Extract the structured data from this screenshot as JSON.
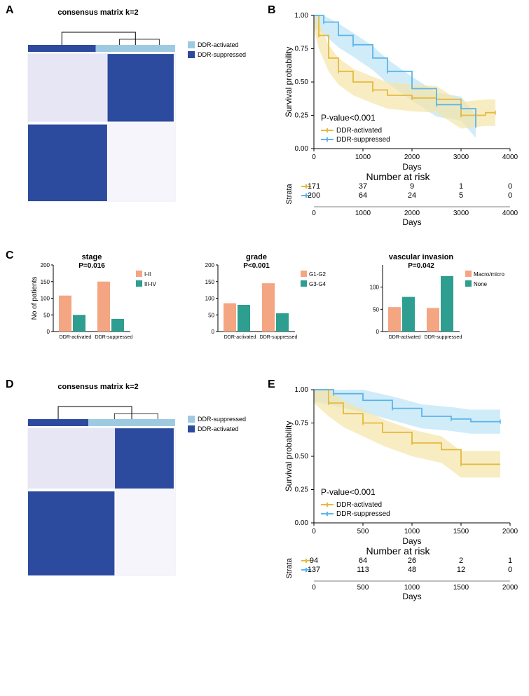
{
  "panelA": {
    "label": "A",
    "title": "consensus matrix k=2",
    "legend": [
      {
        "label": "DDR-activated",
        "color": "#9ecae1"
      },
      {
        "label": "DDR-suppressed",
        "color": "#2c4a9e"
      }
    ],
    "block1_ratio": 0.46,
    "block2_ratio": 0.54,
    "matrix_color": "#2c4a9e",
    "matrix_light": "#9ecae1"
  },
  "panelB": {
    "label": "B",
    "ylabel": "Survival probability",
    "xlabel": "Days",
    "pvalue": "P-value<0.001",
    "xlim": [
      0,
      4000
    ],
    "ylim": [
      0,
      1.0
    ],
    "xticks": [
      0,
      1000,
      2000,
      3000,
      4000
    ],
    "yticks": [
      0.0,
      0.25,
      0.5,
      0.75,
      1.0
    ],
    "legend": [
      {
        "label": "DDR-activated",
        "color": "#e5b93f"
      },
      {
        "label": "DDR-suppressed",
        "color": "#5bb5e8"
      }
    ],
    "series_activated": {
      "color": "#e5b93f",
      "fill": "#f5e5a8",
      "points": [
        [
          0,
          1.0
        ],
        [
          100,
          0.85
        ],
        [
          300,
          0.68
        ],
        [
          500,
          0.58
        ],
        [
          800,
          0.5
        ],
        [
          1200,
          0.44
        ],
        [
          1500,
          0.4
        ],
        [
          2000,
          0.38
        ],
        [
          2500,
          0.37
        ],
        [
          3000,
          0.25
        ],
        [
          3500,
          0.27
        ],
        [
          3700,
          0.27
        ]
      ]
    },
    "series_suppressed": {
      "color": "#5bb5e8",
      "fill": "#bde4f7",
      "points": [
        [
          0,
          1.0
        ],
        [
          200,
          0.95
        ],
        [
          500,
          0.85
        ],
        [
          800,
          0.78
        ],
        [
          1200,
          0.68
        ],
        [
          1500,
          0.58
        ],
        [
          2000,
          0.45
        ],
        [
          2500,
          0.33
        ],
        [
          3000,
          0.3
        ],
        [
          3300,
          0.17
        ]
      ]
    },
    "risk_title": "Number at risk",
    "strata_label": "Strata",
    "risk_rows": [
      {
        "color": "#e5b93f",
        "values": [
          171,
          37,
          9,
          1,
          0
        ]
      },
      {
        "color": "#5bb5e8",
        "values": [
          200,
          64,
          24,
          5,
          0
        ]
      }
    ],
    "risk_xticks": [
      0,
      1000,
      2000,
      3000,
      4000
    ]
  },
  "panelC": {
    "label": "C",
    "ylabel": "No of patients",
    "xcats": [
      "DDR-activated",
      "DDR-suppressed"
    ],
    "charts": [
      {
        "title": "stage",
        "pvalue": "P=0.016",
        "legend": [
          {
            "label": "I-II",
            "color": "#f4a582"
          },
          {
            "label": "III-IV",
            "color": "#2d9e8f"
          }
        ],
        "ylim": [
          0,
          200
        ],
        "yticks": [
          0,
          50,
          100,
          150,
          200
        ],
        "bars": [
          [
            108,
            50
          ],
          [
            150,
            38
          ]
        ]
      },
      {
        "title": "grade",
        "pvalue": "P<0.001",
        "legend": [
          {
            "label": "G1-G2",
            "color": "#f4a582"
          },
          {
            "label": "G3-G4",
            "color": "#2d9e8f"
          }
        ],
        "ylim": [
          0,
          200
        ],
        "yticks": [
          0,
          50,
          100,
          150,
          200
        ],
        "bars": [
          [
            85,
            80
          ],
          [
            145,
            55
          ]
        ]
      },
      {
        "title": "vascular invasion",
        "pvalue": "P=0.042",
        "legend": [
          {
            "label": "Macro/micro",
            "color": "#f4a582"
          },
          {
            "label": "None",
            "color": "#2d9e8f"
          }
        ],
        "ylim": [
          0,
          150
        ],
        "yticks": [
          0,
          50,
          100
        ],
        "bars": [
          [
            55,
            78
          ],
          [
            53,
            125
          ]
        ]
      }
    ]
  },
  "panelD": {
    "label": "D",
    "title": "consensus matrix k=2",
    "legend": [
      {
        "label": "DDR-suppressed",
        "color": "#9ecae1"
      },
      {
        "label": "DDR-activated",
        "color": "#2c4a9e"
      }
    ],
    "block1_ratio": 0.41,
    "block2_ratio": 0.59,
    "matrix_color": "#2c4a9e",
    "matrix_light": "#9ecae1"
  },
  "panelE": {
    "label": "E",
    "ylabel": "Survival probability",
    "xlabel": "Days",
    "pvalue": "P-value<0.001",
    "xlim": [
      0,
      2000
    ],
    "ylim": [
      0,
      1.0
    ],
    "xticks": [
      0,
      500,
      1000,
      1500,
      2000
    ],
    "yticks": [
      0.0,
      0.25,
      0.5,
      0.75,
      1.0
    ],
    "legend": [
      {
        "label": "DDR-activated",
        "color": "#e5b93f"
      },
      {
        "label": "DDR-suppressed",
        "color": "#5bb5e8"
      }
    ],
    "series_activated": {
      "color": "#e5b93f",
      "fill": "#f5e5a8",
      "points": [
        [
          0,
          1.0
        ],
        [
          150,
          0.9
        ],
        [
          300,
          0.82
        ],
        [
          500,
          0.75
        ],
        [
          700,
          0.68
        ],
        [
          1000,
          0.6
        ],
        [
          1300,
          0.55
        ],
        [
          1500,
          0.44
        ],
        [
          1900,
          0.44
        ]
      ]
    },
    "series_suppressed": {
      "color": "#5bb5e8",
      "fill": "#bde4f7",
      "points": [
        [
          0,
          1.0
        ],
        [
          200,
          0.97
        ],
        [
          500,
          0.92
        ],
        [
          800,
          0.86
        ],
        [
          1100,
          0.8
        ],
        [
          1400,
          0.78
        ],
        [
          1600,
          0.76
        ],
        [
          1900,
          0.76
        ]
      ]
    },
    "risk_title": "Number at risk",
    "strata_label": "Strata",
    "risk_rows": [
      {
        "color": "#e5b93f",
        "values": [
          94,
          64,
          26,
          2,
          1
        ]
      },
      {
        "color": "#5bb5e8",
        "values": [
          137,
          113,
          48,
          12,
          0
        ]
      }
    ],
    "risk_xticks": [
      0,
      500,
      1000,
      1500,
      2000
    ]
  }
}
